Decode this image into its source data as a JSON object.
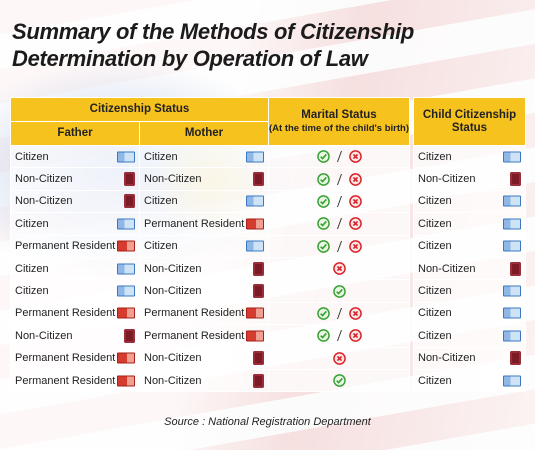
{
  "title": [
    "Summary of the Methods of Citizenship",
    "Determination by Operation of Law"
  ],
  "table": {
    "header": {
      "group": "Citizenship Status",
      "father": "Father",
      "mother": "Mother",
      "marital": "Marital Status",
      "marital_note": "(At the time of the child's birth)",
      "child": "Child Citizenship Status"
    },
    "rows": [
      {
        "father": "Citizen",
        "mother": "Citizen",
        "child": "Citizen"
      },
      {
        "father": "Non-Citizen",
        "mother": "Non-Citizen",
        "child": "Non-Citizen"
      },
      {
        "father": "Non-Citizen",
        "mother": "Citizen",
        "child": "Citizen"
      },
      {
        "father": "Citizen",
        "mother": "Permanent Resident",
        "child": "Citizen"
      },
      {
        "father": "Permanent Resident",
        "mother": "Citizen",
        "child": "Citizen"
      },
      {
        "father": "Citizen",
        "mother": "Non-Citizen",
        "child": "Non-Citizen"
      },
      {
        "father": "Citizen",
        "mother": "Non-Citizen",
        "child": "Citizen"
      },
      {
        "father": "Permanent Resident",
        "mother": "Permanent Resident",
        "child": "Citizen"
      },
      {
        "father": "Non-Citizen",
        "mother": "Permanent Resident",
        "child": "Citizen"
      },
      {
        "father": "Permanent Resident",
        "mother": "Non-Citizen",
        "child": "Non-Citizen"
      },
      {
        "father": "Permanent Resident",
        "mother": "Non-Citizen",
        "child": "Citizen"
      }
    ]
  },
  "source": "Source : National Registration Department"
}
